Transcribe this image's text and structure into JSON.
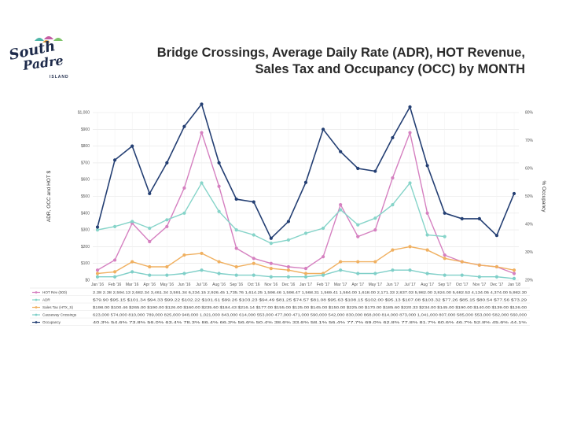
{
  "logo": {
    "line1": "South",
    "line2": "Padre",
    "line3": "ISLAND"
  },
  "title": {
    "line1": "Bridge Crossings, Average Daily Rate (ADR), HOT Revenue,",
    "line2": "Sales Tax and Occupancy (OCC) by MONTH"
  },
  "colors": {
    "hot": "#d580c0",
    "adr": "#86d4c9",
    "salestax": "#f0b060",
    "bridge": "#7fcfc8",
    "occ": "#243f73",
    "grid": "#e4e4e4"
  },
  "chart_data": {
    "type": "line",
    "ylabel_left": "ADR, OCC and HOT $",
    "ylabel_right": "% Occupancy",
    "left_ticks": [
      "$0",
      "$100",
      "$200",
      "$300",
      "$400",
      "$500",
      "$600",
      "$700",
      "$800",
      "$900",
      "$1,000"
    ],
    "right_ticks": [
      "20%",
      "30%",
      "40%",
      "50%",
      "60%",
      "70%",
      "80%"
    ],
    "ylim_left": [
      0,
      1000
    ],
    "ylim_right": [
      20,
      80
    ],
    "categories": [
      "Jan '16",
      "Feb '16",
      "Mar '16",
      "Apr '16",
      "May '16",
      "Jun '16",
      "Jul '16",
      "Aug '16",
      "Sep '16",
      "Oct '16",
      "Nov '16",
      "Dec '16",
      "Jan '17",
      "Feb '17",
      "Mar '17",
      "Apr '17",
      "May '17",
      "Jun '17",
      "Jul '17",
      "Aug '17",
      "Sep '17",
      "Oct '17",
      "Nov '17",
      "Dec '17",
      "Jan '18"
    ],
    "series": [
      {
        "name": "HOT Rev (000)",
        "key": "hot",
        "axis": "left",
        "values": [
          60,
          120,
          340,
          230,
          320,
          550,
          880,
          560,
          190,
          130,
          100,
          80,
          70,
          140,
          450,
          260,
          300,
          610,
          880,
          400,
          150,
          110,
          90,
          80,
          40
        ]
      },
      {
        "name": "ADR",
        "key": "adr",
        "axis": "left",
        "values": [
          300,
          320,
          350,
          310,
          360,
          400,
          580,
          410,
          300,
          270,
          220,
          240,
          280,
          310,
          420,
          330,
          370,
          450,
          580,
          270,
          260,
          null,
          null,
          null,
          null
        ]
      },
      {
        "name": "Sales Tax (HTX_S)",
        "key": "salestax",
        "axis": "left",
        "values": [
          40,
          50,
          110,
          80,
          80,
          150,
          160,
          110,
          80,
          100,
          70,
          60,
          40,
          40,
          110,
          110,
          110,
          180,
          200,
          180,
          130,
          110,
          90,
          80,
          60
        ]
      },
      {
        "name": "Causeway Crossings",
        "key": "bridge",
        "axis": "left",
        "values": [
          20,
          20,
          50,
          30,
          30,
          40,
          60,
          40,
          30,
          30,
          20,
          20,
          20,
          30,
          60,
          40,
          40,
          60,
          60,
          40,
          30,
          30,
          20,
          20,
          10
        ]
      },
      {
        "name": "Occupancy",
        "key": "occ",
        "axis": "right",
        "values": [
          39,
          63,
          68,
          51,
          62,
          75,
          83,
          62,
          49,
          48,
          35,
          41,
          55,
          74,
          66,
          60,
          59,
          71,
          82,
          61,
          44,
          42,
          42,
          36,
          51
        ]
      }
    ],
    "table_rows": [
      "2.38 2.38 2,594.13 2,682.34 3,461.34 3,591.34 6,234.15 2,926.45 1,735.76 1,614.25 1,598.46 1,598.47 1,568.31 1,569.41 1,584.00 1,618.00 2,171.33 2,837.03 5,982.00 3,824.00 5,682.53 4,134.05 4,374.00 5,982.30",
      "$79.90 $95.15 $101.34 $94.33 $99.22 $102.22 $101.61 $99.26 $103.23 $94.49 $81.25 $74.57 $81.08 $95.63 $108.15 $102.00 $95.13 $107.08 $103.32 $77.26 $85.15 $80.54 $77.56 $73.29",
      "$198.00 $100.46 $265.00 $190.00 $126.00 $160.00 $235.60 $184.43 $216.14 $177.00 $155.00 $125.00 $145.00 $150.00 $225.00 $170.00 $185.60 $220.33 $234.00 $145.00 $190.00 $140.00 $139.00 $126.00",
      "623,000 574,000 810,000 789,000 825,000 948,000 1,021,000 843,000 614,000 553,000 477,000 471,000 590,000 542,000 830,000 868,000 814,000 873,000 1,041,000 807,000 585,000 553,000 582,000 560,000",
      "40.3% 54.6% 73.8% 56.0% 63.4% 78.3% 86.4% 66.3% 56.6% 50.4% 38.6% 33.6% 58.1% 56.4% 77.7% 69.0% 62.8% 77.8% 81.7% 60.6% 46.7% 52.8% 45.6% 44.1%"
    ]
  }
}
